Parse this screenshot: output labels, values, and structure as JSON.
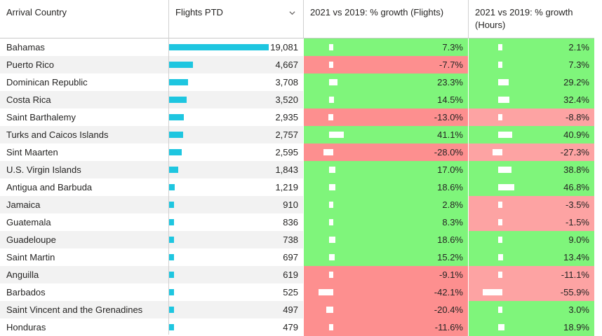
{
  "colors": {
    "positive": "#7ff57b",
    "negative": "#fd8f8f",
    "bar": "#1ec6e0"
  },
  "header": {
    "country": "Arrival Country",
    "flights": "Flights PTD",
    "growth_flights": "2021 vs 2019: % growth (Flights)",
    "growth_hours": "2021 vs 2019: % growth (Hours)",
    "sort_icon": "chevron-down-icon"
  },
  "rows": [
    {
      "country": "Bahamas",
      "flights": 19081,
      "flights_label": "19,081",
      "gf": 7.3,
      "gf_label": "7.3%",
      "gh": 2.1,
      "gh_label": "2.1%"
    },
    {
      "country": "Puerto Rico",
      "flights": 4667,
      "flights_label": "4,667",
      "gf": -7.7,
      "gf_label": "-7.7%",
      "gh": 7.3,
      "gh_label": "7.3%"
    },
    {
      "country": "Dominican Republic",
      "flights": 3708,
      "flights_label": "3,708",
      "gf": 23.3,
      "gf_label": "23.3%",
      "gh": 29.2,
      "gh_label": "29.2%"
    },
    {
      "country": "Costa Rica",
      "flights": 3520,
      "flights_label": "3,520",
      "gf": 14.5,
      "gf_label": "14.5%",
      "gh": 32.4,
      "gh_label": "32.4%"
    },
    {
      "country": "Saint Barthalemy",
      "flights": 2935,
      "flights_label": "2,935",
      "gf": -13.0,
      "gf_label": "-13.0%",
      "gh": -8.8,
      "gh_label": "-8.8%"
    },
    {
      "country": "Turks and Caicos Islands",
      "flights": 2757,
      "flights_label": "2,757",
      "gf": 41.1,
      "gf_label": "41.1%",
      "gh": 40.9,
      "gh_label": "40.9%"
    },
    {
      "country": "Sint Maarten",
      "flights": 2595,
      "flights_label": "2,595",
      "gf": -28.0,
      "gf_label": "-28.0%",
      "gh": -27.3,
      "gh_label": "-27.3%"
    },
    {
      "country": "U.S. Virgin Islands",
      "flights": 1843,
      "flights_label": "1,843",
      "gf": 17.0,
      "gf_label": "17.0%",
      "gh": 38.8,
      "gh_label": "38.8%"
    },
    {
      "country": "Antigua and Barbuda",
      "flights": 1219,
      "flights_label": "1,219",
      "gf": 18.6,
      "gf_label": "18.6%",
      "gh": 46.8,
      "gh_label": "46.8%"
    },
    {
      "country": "Jamaica",
      "flights": 910,
      "flights_label": "910",
      "gf": 2.8,
      "gf_label": "2.8%",
      "gh": -3.5,
      "gh_label": "-3.5%"
    },
    {
      "country": "Guatemala",
      "flights": 836,
      "flights_label": "836",
      "gf": 8.3,
      "gf_label": "8.3%",
      "gh": -1.5,
      "gh_label": "-1.5%"
    },
    {
      "country": "Guadeloupe",
      "flights": 738,
      "flights_label": "738",
      "gf": 18.6,
      "gf_label": "18.6%",
      "gh": 9.0,
      "gh_label": "9.0%"
    },
    {
      "country": "Saint Martin",
      "flights": 697,
      "flights_label": "697",
      "gf": 15.2,
      "gf_label": "15.2%",
      "gh": 13.4,
      "gh_label": "13.4%"
    },
    {
      "country": "Anguilla",
      "flights": 619,
      "flights_label": "619",
      "gf": -9.1,
      "gf_label": "-9.1%",
      "gh": -11.1,
      "gh_label": "-11.1%"
    },
    {
      "country": "Barbados",
      "flights": 525,
      "flights_label": "525",
      "gf": -42.1,
      "gf_label": "-42.1%",
      "gh": -55.9,
      "gh_label": "-55.9%"
    },
    {
      "country": "Saint Vincent and the Grenadines",
      "flights": 497,
      "flights_label": "497",
      "gf": -20.4,
      "gf_label": "-20.4%",
      "gh": 3.0,
      "gh_label": "3.0%"
    },
    {
      "country": "Honduras",
      "flights": 479,
      "flights_label": "479",
      "gf": -11.6,
      "gf_label": "-11.6%",
      "gh": 18.9,
      "gh_label": "18.9%"
    }
  ]
}
